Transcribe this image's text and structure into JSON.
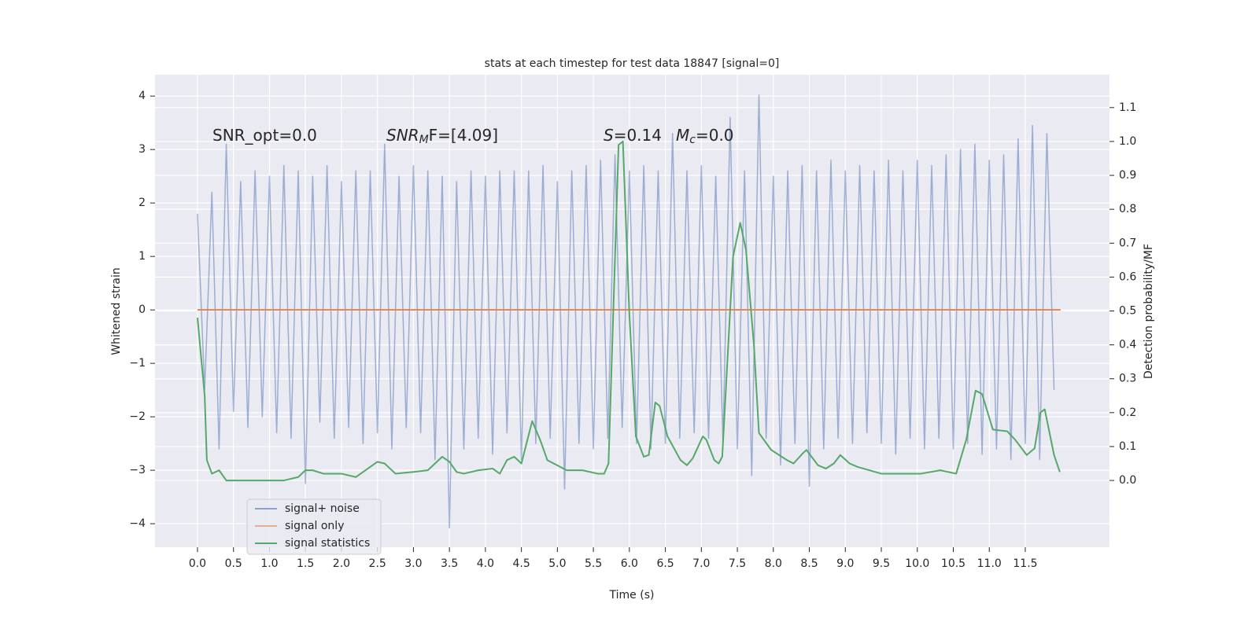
{
  "chart_data": {
    "type": "line",
    "title": "stats at each timestep for test data 18847 [signal=0]",
    "xlabel": "Time (s)",
    "ylabel": "Whitened strain",
    "y2label": "Detection probability/MF",
    "annotations": [
      {
        "tail": "SNR_opt=0.0"
      },
      {
        "base": "SNR",
        "sub": "M",
        "tail": "F=[4.09]"
      },
      {
        "base": "S",
        "tail": "=0.14"
      },
      {
        "base": "M",
        "sub": "c",
        "tail": "=0.0"
      }
    ],
    "xlim": [
      -0.59,
      12.67
    ],
    "ylim": [
      -4.44,
      4.4
    ],
    "y2lim": [
      -0.197,
      1.197
    ],
    "xticks": [
      {
        "value": 0,
        "label": "0.0"
      },
      0.5,
      {
        "value": 1,
        "label": "1.0"
      },
      1.5,
      {
        "value": 2,
        "label": "2.0"
      },
      2.5,
      {
        "value": 3,
        "label": "3.0"
      },
      3.5,
      {
        "value": 4,
        "label": "4.0"
      },
      4.5,
      {
        "value": 5,
        "label": "5.0"
      },
      5.5,
      {
        "value": 6,
        "label": "6.0"
      },
      6.5,
      {
        "value": 7,
        "label": "7.0"
      },
      7.5,
      {
        "value": 8,
        "label": "8.0"
      },
      8.5,
      {
        "value": 9,
        "label": "9.0"
      },
      9.5,
      {
        "value": 10,
        "label": "10.0"
      },
      10.5,
      {
        "value": 11,
        "label": "11.0"
      },
      11.5
    ],
    "yticks": [
      {
        "value": -4,
        "label": "−4"
      },
      {
        "value": -3,
        "label": "−3"
      },
      {
        "value": -2,
        "label": "−2"
      },
      {
        "value": -1,
        "label": "−1"
      },
      0,
      1,
      2,
      3,
      4
    ],
    "y2ticks": [
      {
        "value": 0,
        "label": "0.0"
      },
      0.1,
      0.2,
      0.3,
      0.4,
      0.5,
      0.6,
      0.7,
      0.8,
      0.9,
      {
        "value": 1,
        "label": "1.0"
      },
      1.1
    ],
    "grid": true,
    "legend": "lower left",
    "series": [
      {
        "name": "signal+ noise",
        "color": "#4c72b0",
        "x": [
          0,
          0.1,
          0.2,
          0.3,
          0.4,
          0.5,
          0.6,
          0.7,
          0.8,
          0.9,
          1,
          1.1,
          1.2,
          1.3,
          1.4,
          1.5,
          1.6,
          1.7,
          1.8,
          1.9,
          2,
          2.1,
          2.2,
          2.3,
          2.4,
          2.5,
          2.6,
          2.7,
          2.8,
          2.9,
          3,
          3.1,
          3.2,
          3.3,
          3.4,
          3.5,
          3.6,
          3.7,
          3.8,
          3.9,
          4,
          4.1,
          4.2,
          4.3,
          4.4,
          4.5,
          4.6,
          4.7,
          4.8,
          4.9,
          5,
          5.1,
          5.2,
          5.3,
          5.4,
          5.5,
          5.6,
          5.7,
          5.8,
          5.9,
          6,
          6.1,
          6.2,
          6.3,
          6.4,
          6.5,
          6.6,
          6.7,
          6.8,
          6.9,
          7,
          7.1,
          7.2,
          7.3,
          7.4,
          7.5,
          7.6,
          7.7,
          7.8,
          7.9,
          8,
          8.1,
          8.2,
          8.3,
          8.4,
          8.5,
          8.6,
          8.7,
          8.8,
          8.9,
          9,
          9.1,
          9.2,
          9.3,
          9.4,
          9.5,
          9.6,
          9.7,
          9.8,
          9.9,
          10,
          10.1,
          10.2,
          10.3,
          10.4,
          10.5,
          10.6,
          10.7,
          10.8,
          10.9,
          11,
          11.1,
          11.2,
          11.3,
          11.4,
          11.5,
          11.6,
          11.7,
          11.8,
          11.9
        ],
        "values": [
          1.8,
          -1.5,
          2.2,
          -2.6,
          3.1,
          -1.9,
          2.4,
          -2.2,
          2.6,
          -2.0,
          2.5,
          -2.3,
          2.7,
          -2.4,
          2.6,
          -3.25,
          2.5,
          -2.1,
          2.7,
          -2.4,
          2.4,
          -2.2,
          2.6,
          -2.5,
          2.6,
          -2.3,
          3.1,
          -2.6,
          2.5,
          -2.2,
          2.7,
          -2.3,
          2.6,
          -2.8,
          2.5,
          -4.08,
          2.4,
          -2.6,
          2.6,
          -2.4,
          2.5,
          -2.7,
          2.6,
          -2.3,
          2.6,
          -2.8,
          2.6,
          -2.5,
          2.7,
          -2.4,
          2.4,
          -3.35,
          2.6,
          -2.5,
          2.7,
          -2.6,
          2.8,
          -2.4,
          2.9,
          -2.2,
          2.6,
          -2.5,
          2.7,
          -2.6,
          2.6,
          -2.5,
          3.3,
          -2.4,
          2.6,
          -2.3,
          2.7,
          -2.4,
          2.5,
          -2.5,
          3.6,
          -2.6,
          2.6,
          -3.1,
          4.02,
          -2.4,
          2.5,
          -2.9,
          2.6,
          -2.5,
          2.7,
          -3.3,
          2.6,
          -2.6,
          2.8,
          -2.4,
          2.6,
          -2.5,
          2.7,
          -2.3,
          2.6,
          -2.5,
          2.8,
          -2.7,
          2.6,
          -2.4,
          2.8,
          -2.6,
          2.7,
          -2.4,
          2.9,
          -2.6,
          3.0,
          -2.5,
          3.1,
          -2.7,
          2.8,
          -2.6,
          2.9,
          -2.8,
          3.2,
          -2.5,
          3.45,
          -2.8,
          3.3,
          -1.5
        ]
      },
      {
        "name": "signal only",
        "color": "#dd8452",
        "x": [
          0,
          11.99
        ],
        "values": [
          0,
          0
        ]
      },
      {
        "name": "signal statistics",
        "color": "#55a868",
        "axis": "y2",
        "x": [
          0.0,
          0.1,
          0.13,
          0.2,
          0.3,
          0.4,
          0.5,
          0.6,
          0.8,
          1.0,
          1.2,
          1.4,
          1.5,
          1.6,
          1.75,
          2.0,
          2.2,
          2.4,
          2.5,
          2.6,
          2.75,
          3.0,
          3.2,
          3.4,
          3.5,
          3.6,
          3.7,
          3.9,
          4.1,
          4.2,
          4.3,
          4.4,
          4.5,
          4.65,
          4.76,
          4.86,
          5.13,
          5.35,
          5.56,
          5.65,
          5.71,
          5.85,
          5.91,
          6.0,
          6.09,
          6.2,
          6.27,
          6.36,
          6.42,
          6.53,
          6.71,
          6.8,
          6.88,
          7.02,
          7.07,
          7.18,
          7.24,
          7.29,
          7.44,
          7.54,
          7.62,
          7.73,
          7.8,
          7.97,
          8.19,
          8.28,
          8.41,
          8.46,
          8.62,
          8.73,
          8.84,
          8.93,
          9.06,
          9.17,
          9.5,
          10.05,
          10.32,
          10.54,
          10.68,
          10.81,
          10.9,
          11.05,
          11.25,
          11.36,
          11.52,
          11.63,
          11.71,
          11.77,
          11.9,
          11.98
        ],
        "values": [
          0.48,
          0.25,
          0.06,
          0.02,
          0.03,
          0.0,
          0.0,
          0.0,
          0.0,
          0.0,
          0.0,
          0.01,
          0.03,
          0.03,
          0.02,
          0.02,
          0.01,
          0.04,
          0.055,
          0.05,
          0.02,
          0.025,
          0.03,
          0.07,
          0.055,
          0.025,
          0.02,
          0.03,
          0.035,
          0.02,
          0.06,
          0.07,
          0.05,
          0.175,
          0.12,
          0.06,
          0.03,
          0.03,
          0.02,
          0.02,
          0.05,
          0.99,
          1.0,
          0.49,
          0.13,
          0.07,
          0.075,
          0.23,
          0.22,
          0.13,
          0.06,
          0.045,
          0.065,
          0.13,
          0.12,
          0.06,
          0.05,
          0.07,
          0.66,
          0.76,
          0.68,
          0.4,
          0.14,
          0.09,
          0.06,
          0.05,
          0.08,
          0.09,
          0.045,
          0.035,
          0.05,
          0.075,
          0.05,
          0.04,
          0.02,
          0.02,
          0.03,
          0.02,
          0.12,
          0.265,
          0.255,
          0.15,
          0.145,
          0.12,
          0.075,
          0.095,
          0.2,
          0.21,
          0.075,
          0.025
        ]
      }
    ]
  }
}
